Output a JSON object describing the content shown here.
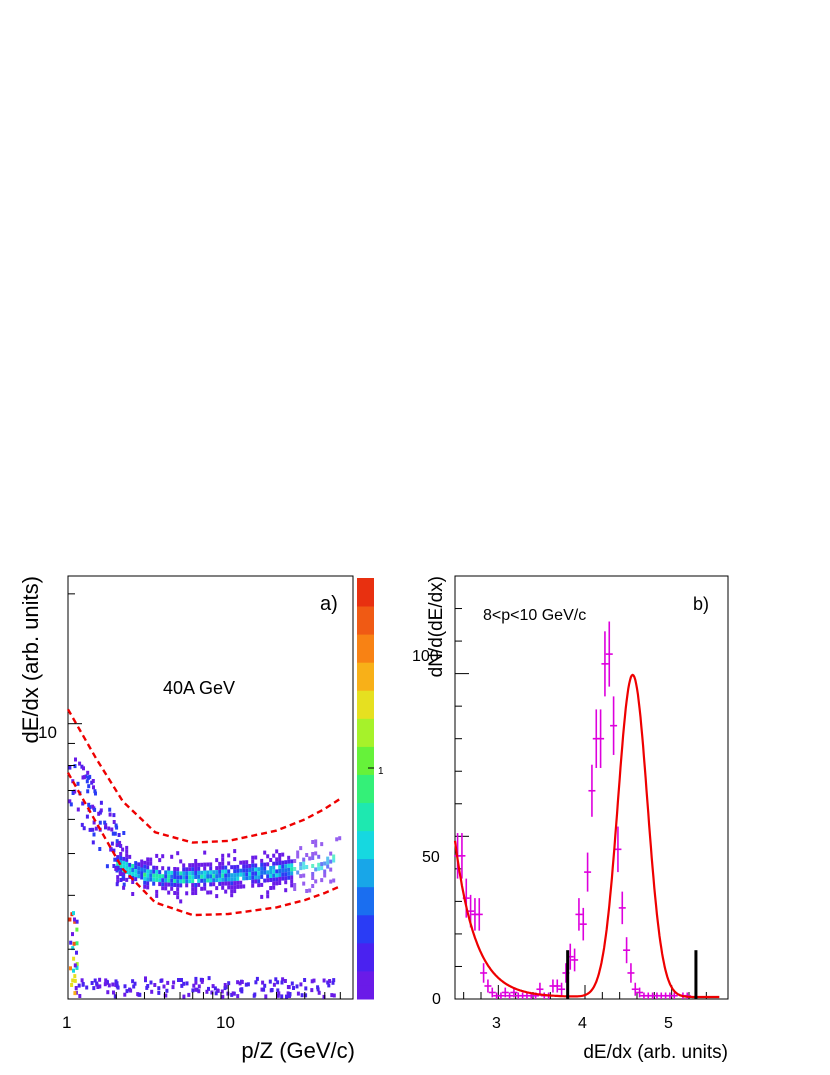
{
  "panel_a": {
    "tag": "a)",
    "label": "40A GeV",
    "xlabel": "p/Z (GeV/c)",
    "ylabel": "dE/dx (arb. units)",
    "xticks": [
      "1",
      "10"
    ],
    "yticks": [
      "10"
    ],
    "palette_label": "1"
  },
  "panel_b": {
    "tag": "b)",
    "label": "8<p<10 GeV/c",
    "xlabel": "dE/dx (arb. units)",
    "ylabel": "dN/d(dE/dx)",
    "xticks": [
      "3",
      "4",
      "5"
    ],
    "yticks": [
      "0",
      "50",
      "100"
    ]
  },
  "chart_data": [
    {
      "type": "heatmap",
      "description_tag": "a)",
      "xscale": "log",
      "yscale": "log",
      "xlim": [
        1,
        60
      ],
      "ylim": [
        2.3,
        22
      ],
      "colors": {
        "band": "#ee0000",
        "palette": [
          "#6a1be8",
          "#4a22f0",
          "#2a3cf5",
          "#1a6ef0",
          "#18a6e8",
          "#16d8e0",
          "#1ee8b0",
          "#34f078",
          "#66f23a",
          "#a6f22a",
          "#e6e020",
          "#f8b018",
          "#f88214",
          "#f05a14",
          "#e83010"
        ]
      },
      "band_upper": {
        "x": [
          1,
          1.5,
          2.2,
          3.5,
          6,
          10,
          20,
          30,
          40,
          50
        ],
        "y": [
          10.8,
          8.3,
          6.6,
          5.6,
          5.3,
          5.35,
          5.65,
          6.0,
          6.35,
          6.7
        ]
      },
      "band_lower": {
        "x": [
          1,
          1.5,
          2.2,
          3.5,
          6,
          10,
          20,
          30,
          40,
          50
        ],
        "y": [
          7.7,
          5.9,
          4.6,
          3.85,
          3.6,
          3.62,
          3.75,
          3.9,
          4.05,
          4.2
        ]
      },
      "main_band": {
        "x": [
          2.0,
          3,
          5,
          10,
          20,
          40,
          50
        ],
        "y": [
          4.7,
          4.45,
          4.4,
          4.45,
          4.55,
          4.75,
          4.9
        ]
      }
    },
    {
      "type": "scatter",
      "description_tag": "b)",
      "xlim": [
        2.5,
        5.65
      ],
      "ylim": [
        0,
        130
      ],
      "colors": {
        "points": "#dd00dd",
        "fit": "#ee0000",
        "markers": "#000000"
      },
      "points": {
        "x": [
          2.53,
          2.58,
          2.63,
          2.68,
          2.73,
          2.78,
          2.83,
          2.88,
          2.93,
          2.98,
          3.03,
          3.08,
          3.13,
          3.18,
          3.23,
          3.28,
          3.33,
          3.38,
          3.43,
          3.48,
          3.53,
          3.58,
          3.63,
          3.68,
          3.73,
          3.78,
          3.83,
          3.88,
          3.93,
          3.98,
          4.03,
          4.08,
          4.13,
          4.18,
          4.23,
          4.28,
          4.33,
          4.38,
          4.43,
          4.48,
          4.53,
          4.58,
          4.63,
          4.68,
          4.73,
          4.78,
          4.83,
          4.88,
          4.93,
          4.98,
          5.03,
          5.08,
          5.13,
          5.18,
          5.23,
          5.28,
          5.33,
          5.38,
          5.43,
          5.48,
          5.53
        ],
        "y": [
          44,
          44,
          31,
          27,
          26,
          26,
          8,
          4,
          2,
          1,
          1,
          2,
          1,
          2,
          1,
          1,
          1,
          1,
          1,
          3,
          1,
          1,
          4,
          4,
          3,
          8,
          13,
          12,
          26,
          23,
          39,
          64,
          80,
          80,
          103,
          106,
          84,
          46,
          28,
          15,
          8,
          3,
          2,
          1,
          1,
          1,
          1,
          1,
          1,
          1,
          1,
          0,
          1,
          1,
          0,
          0,
          0,
          0,
          0,
          0,
          0
        ],
        "err": [
          7,
          7,
          6,
          5,
          5,
          5,
          3,
          2,
          1.5,
          1,
          1,
          1.5,
          1,
          1.5,
          1,
          1,
          1,
          1,
          1,
          2,
          1,
          1,
          2,
          2,
          2,
          3,
          4,
          3.5,
          5,
          5,
          6,
          8,
          9,
          9,
          10,
          10,
          9,
          7,
          5,
          4,
          3,
          2,
          1.5,
          1,
          1,
          1,
          1,
          1,
          1,
          1,
          1,
          0,
          1,
          1,
          0,
          0,
          0,
          0,
          0,
          0,
          0
        ]
      },
      "markers_x": [
        3.8,
        5.28
      ],
      "fit_peak": {
        "mean": 4.55,
        "sigma": 0.17,
        "amplitude": 99
      },
      "fit_bg": {
        "amplitude": 48,
        "slope": 4.2,
        "x0": 2.5
      }
    }
  ]
}
